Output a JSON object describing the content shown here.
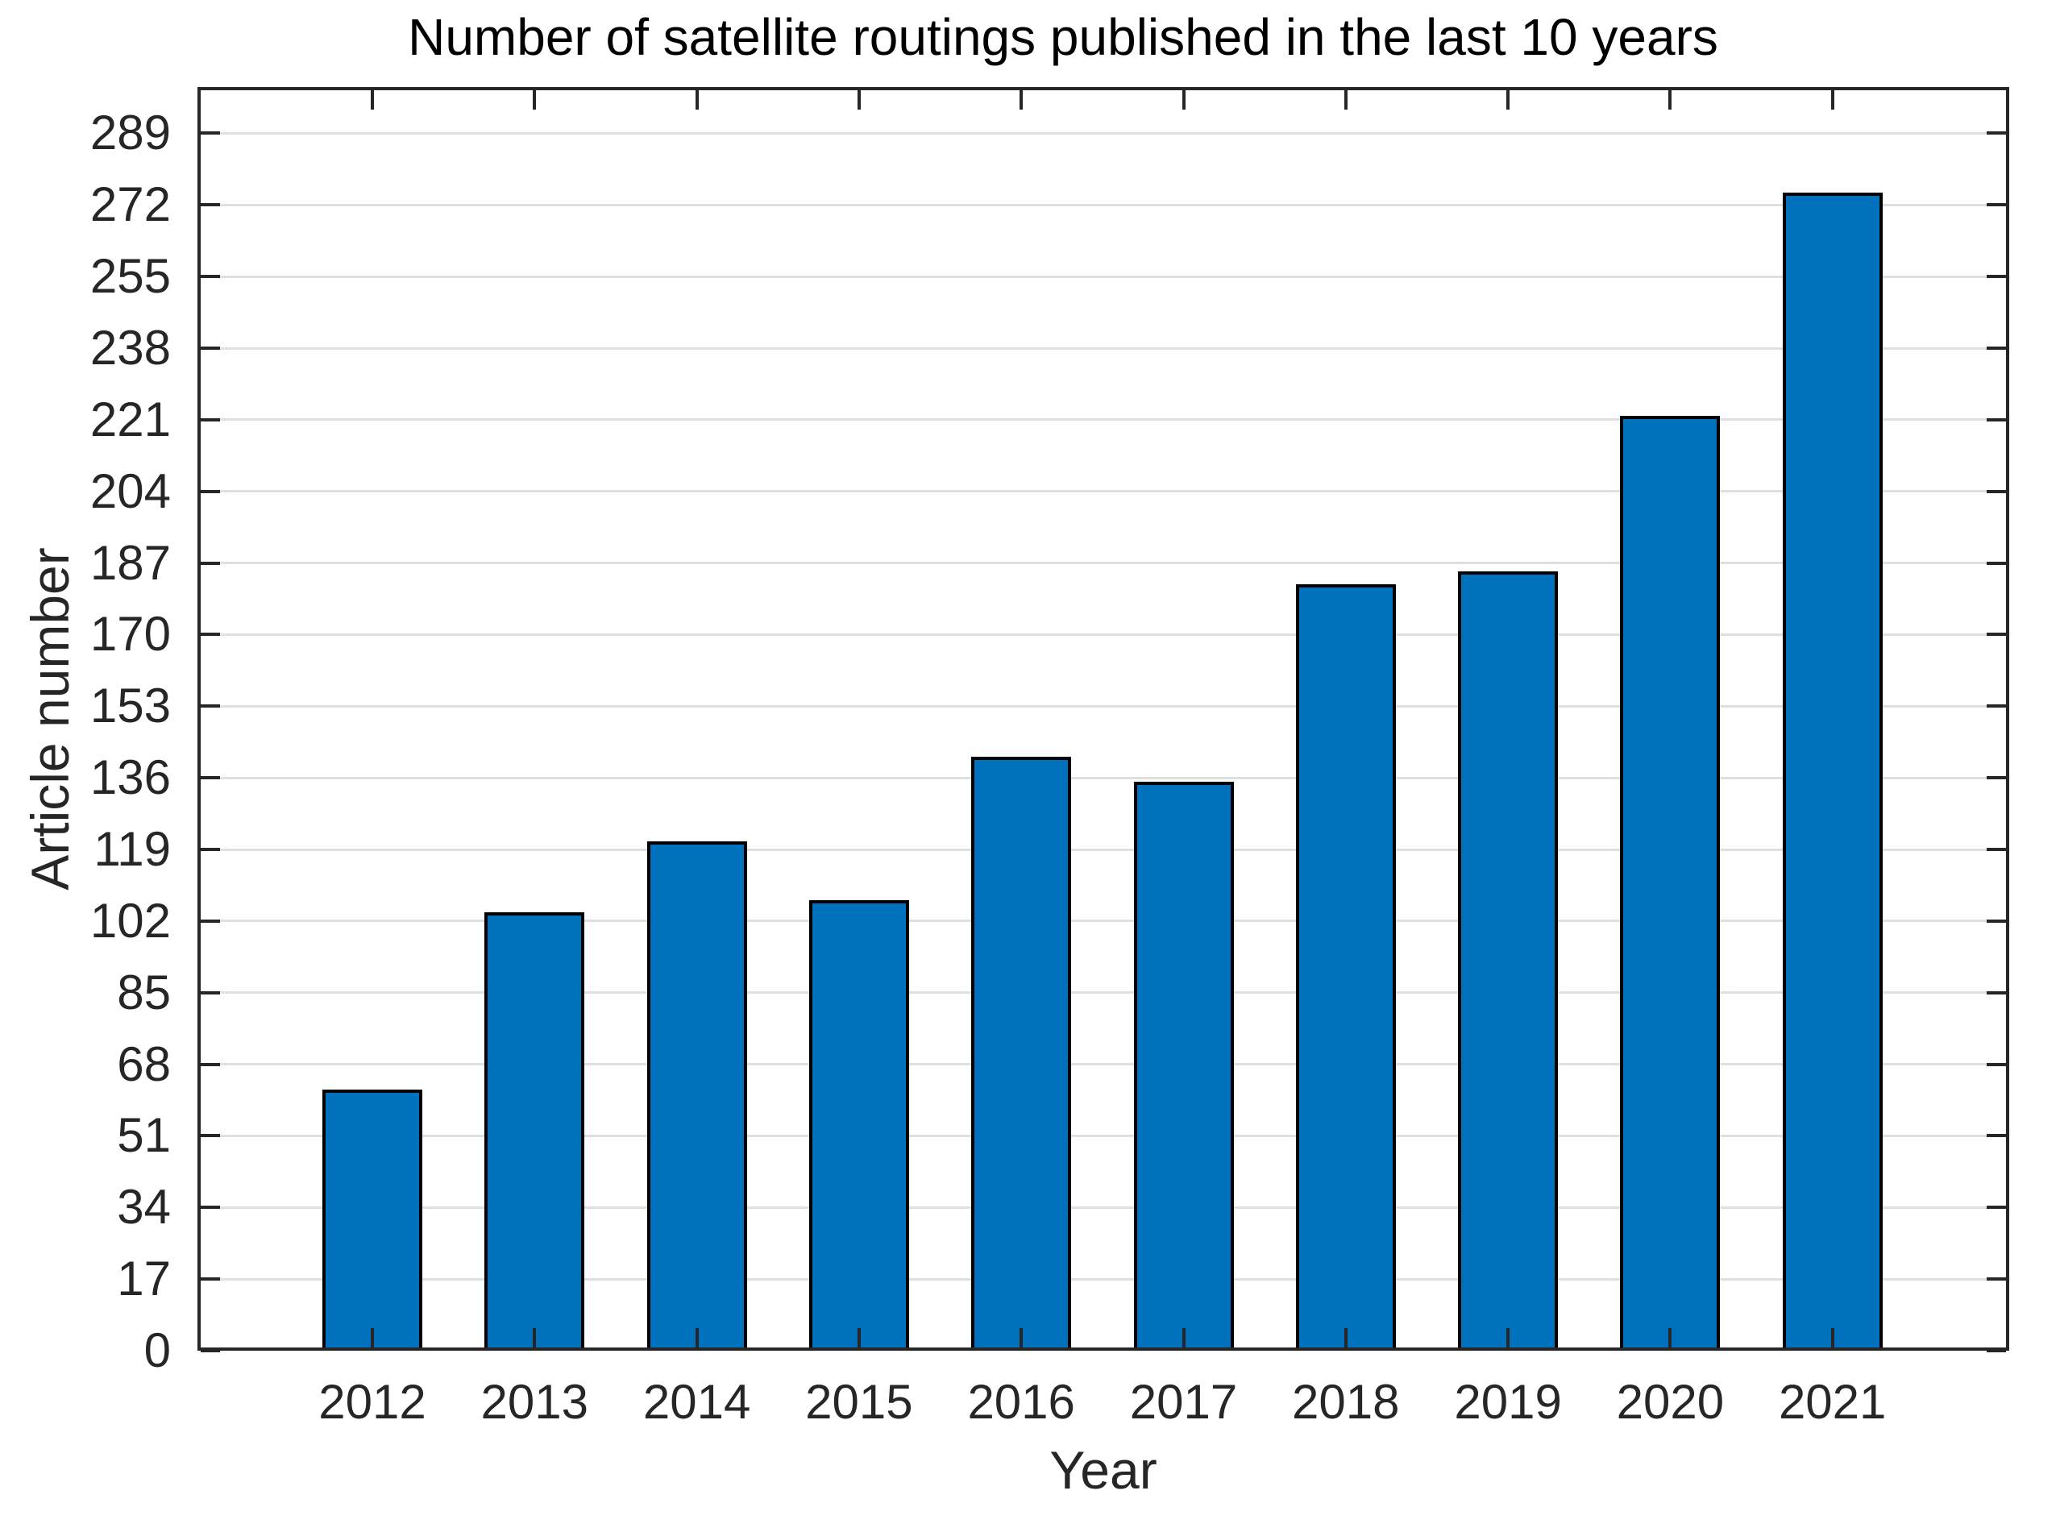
{
  "figure": {
    "title": "Number of satellite routings published in the last 10 years",
    "xlabel": "Year",
    "ylabel": "Article number"
  },
  "chart_data": {
    "type": "bar",
    "title": "Number of satellite routings published in the last 10 years",
    "xlabel": "Year",
    "ylabel": "Article number",
    "categories": [
      "2012",
      "2013",
      "2014",
      "2015",
      "2016",
      "2017",
      "2018",
      "2019",
      "2020",
      "2021"
    ],
    "values": [
      62,
      104,
      121,
      107,
      141,
      135,
      182,
      185,
      222,
      275
    ],
    "yticks": [
      0,
      17,
      34,
      51,
      68,
      85,
      102,
      119,
      136,
      153,
      170,
      187,
      204,
      221,
      238,
      255,
      272,
      289
    ],
    "ylim": [
      0,
      300
    ],
    "grid": "horizontal-only",
    "legend": "none",
    "colors": {
      "bar_fill": "#0072BD",
      "bar_edge": "#000000",
      "grid_line": "#E0E0E0",
      "axis_line": "#262626",
      "tick_label": "#262626",
      "title_text": "#000000"
    }
  }
}
